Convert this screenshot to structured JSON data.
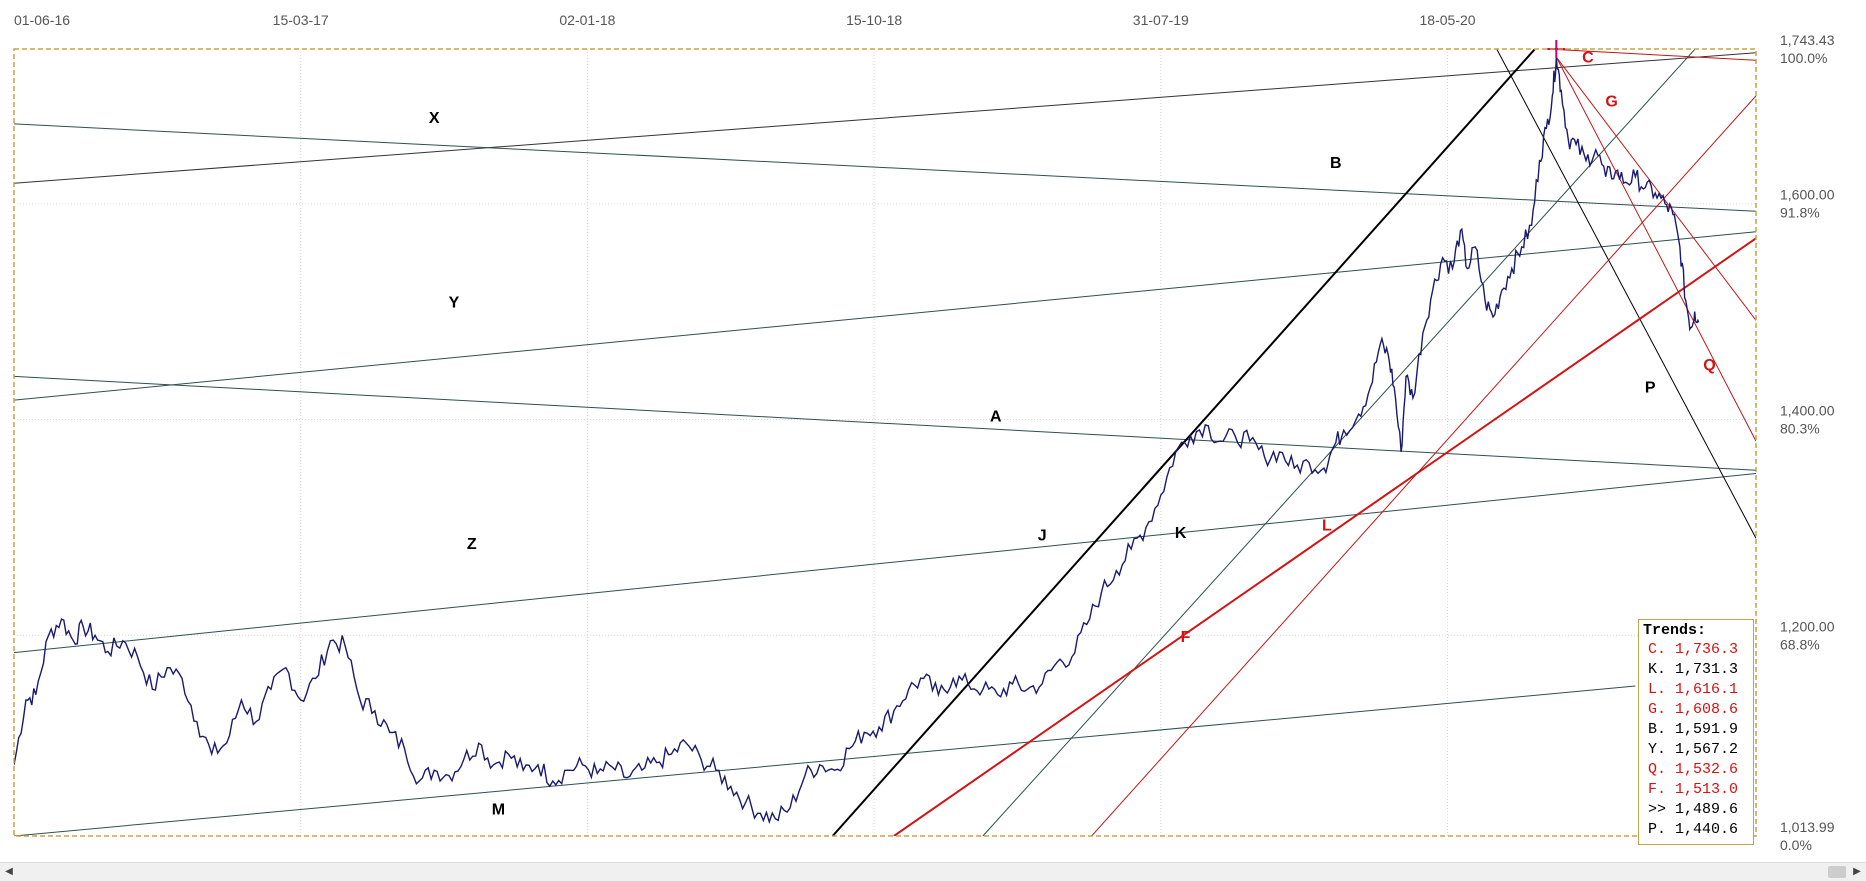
{
  "chart_data": {
    "type": "line",
    "x_ticks": [
      "01-06-16",
      "15-03-17",
      "02-01-18",
      "15-10-18",
      "31-07-19",
      "18-05-20"
    ],
    "y_labels": [
      {
        "value": 1743.43,
        "text": "1,743.43",
        "pct": "100.0%"
      },
      {
        "value": 1600,
        "text": "1,600.00",
        "pct": "91.8%"
      },
      {
        "value": 1400,
        "text": "1,400.00",
        "pct": "80.3%"
      },
      {
        "value": 1200,
        "text": "1,200.00",
        "pct": "68.8%"
      },
      {
        "value": 1013.99,
        "text": "1,013.99",
        "pct": "0.0%"
      }
    ],
    "ylim": [
      1013.99,
      1743.43
    ],
    "grid": true,
    "series": [
      {
        "color": "#1a1a6e",
        "points": [
          [
            0,
            1080
          ],
          [
            12,
            1140
          ],
          [
            22,
            1145
          ],
          [
            35,
            1200
          ],
          [
            48,
            1215
          ],
          [
            60,
            1195
          ],
          [
            70,
            1208
          ],
          [
            82,
            1200
          ],
          [
            95,
            1185
          ],
          [
            110,
            1195
          ],
          [
            125,
            1180
          ],
          [
            140,
            1150
          ],
          [
            155,
            1170
          ],
          [
            170,
            1160
          ],
          [
            185,
            1120
          ],
          [
            200,
            1090
          ],
          [
            215,
            1100
          ],
          [
            230,
            1140
          ],
          [
            245,
            1120
          ],
          [
            260,
            1150
          ],
          [
            275,
            1170
          ],
          [
            290,
            1140
          ],
          [
            305,
            1160
          ],
          [
            320,
            1195
          ],
          [
            335,
            1190
          ],
          [
            350,
            1140
          ],
          [
            365,
            1130
          ],
          [
            380,
            1110
          ],
          [
            395,
            1095
          ],
          [
            410,
            1065
          ],
          [
            425,
            1075
          ],
          [
            440,
            1070
          ],
          [
            455,
            1085
          ],
          [
            470,
            1100
          ],
          [
            485,
            1080
          ],
          [
            500,
            1090
          ],
          [
            515,
            1075
          ],
          [
            530,
            1080
          ],
          [
            545,
            1065
          ],
          [
            560,
            1075
          ],
          [
            575,
            1080
          ],
          [
            590,
            1072
          ],
          [
            605,
            1078
          ],
          [
            620,
            1068
          ],
          [
            635,
            1075
          ],
          [
            650,
            1082
          ],
          [
            665,
            1090
          ],
          [
            680,
            1100
          ],
          [
            695,
            1085
          ],
          [
            710,
            1075
          ],
          [
            725,
            1060
          ],
          [
            740,
            1045
          ],
          [
            755,
            1035
          ],
          [
            770,
            1030
          ],
          [
            785,
            1040
          ],
          [
            800,
            1070
          ],
          [
            815,
            1080
          ],
          [
            830,
            1075
          ],
          [
            845,
            1095
          ],
          [
            860,
            1110
          ],
          [
            875,
            1115
          ],
          [
            890,
            1130
          ],
          [
            905,
            1150
          ],
          [
            920,
            1160
          ],
          [
            935,
            1145
          ],
          [
            950,
            1160
          ],
          [
            965,
            1155
          ],
          [
            980,
            1150
          ],
          [
            995,
            1145
          ],
          [
            1010,
            1155
          ],
          [
            1025,
            1150
          ],
          [
            1040,
            1155
          ],
          [
            1055,
            1175
          ],
          [
            1070,
            1180
          ],
          [
            1085,
            1210
          ],
          [
            1100,
            1240
          ],
          [
            1115,
            1260
          ],
          [
            1130,
            1280
          ],
          [
            1145,
            1300
          ],
          [
            1160,
            1330
          ],
          [
            1175,
            1370
          ],
          [
            1190,
            1385
          ],
          [
            1205,
            1395
          ],
          [
            1220,
            1380
          ],
          [
            1235,
            1385
          ],
          [
            1250,
            1380
          ],
          [
            1265,
            1365
          ],
          [
            1280,
            1370
          ],
          [
            1295,
            1355
          ],
          [
            1310,
            1360
          ],
          [
            1325,
            1355
          ],
          [
            1335,
            1375
          ],
          [
            1345,
            1390
          ],
          [
            1360,
            1405
          ],
          [
            1372,
            1430
          ],
          [
            1382,
            1470
          ],
          [
            1390,
            1460
          ],
          [
            1396,
            1430
          ],
          [
            1403,
            1370
          ],
          [
            1408,
            1440
          ],
          [
            1415,
            1420
          ],
          [
            1425,
            1480
          ],
          [
            1435,
            1520
          ],
          [
            1445,
            1550
          ],
          [
            1455,
            1540
          ],
          [
            1463,
            1575
          ],
          [
            1470,
            1540
          ],
          [
            1478,
            1560
          ],
          [
            1488,
            1510
          ],
          [
            1496,
            1495
          ],
          [
            1505,
            1520
          ],
          [
            1515,
            1540
          ],
          [
            1525,
            1560
          ],
          [
            1535,
            1580
          ],
          [
            1543,
            1640
          ],
          [
            1550,
            1670
          ],
          [
            1556,
            1700
          ],
          [
            1560,
            1736
          ],
          [
            1565,
            1705
          ],
          [
            1572,
            1660
          ],
          [
            1580,
            1655
          ],
          [
            1590,
            1640
          ],
          [
            1600,
            1650
          ],
          [
            1610,
            1625
          ],
          [
            1620,
            1630
          ],
          [
            1630,
            1620
          ],
          [
            1640,
            1625
          ],
          [
            1650,
            1615
          ],
          [
            1660,
            1610
          ],
          [
            1670,
            1600
          ],
          [
            1678,
            1590
          ],
          [
            1685,
            1560
          ],
          [
            1691,
            1510
          ],
          [
            1696,
            1485
          ],
          [
            1700,
            1500
          ],
          [
            1704,
            1490
          ]
        ]
      }
    ],
    "trend_lines": [
      {
        "label": "X",
        "color": "#333333",
        "width": 1,
        "from": [
          0,
          1619
        ],
        "to": [
          1762,
          1740
        ]
      },
      {
        "label": "B",
        "color": "#2f4f4f",
        "width": 1,
        "from": [
          0,
          1674
        ],
        "to": [
          1762,
          1593
        ]
      },
      {
        "label": "Y",
        "color": "#2f4f4f",
        "width": 1,
        "from": [
          0,
          1418
        ],
        "to": [
          1762,
          1574
        ]
      },
      {
        "label": "A",
        "color": "#2f4f4f",
        "width": 1,
        "from": [
          0,
          1440
        ],
        "to": [
          1762,
          1353
        ]
      },
      {
        "label": "Z",
        "color": "#2f4f4f",
        "width": 1,
        "from": [
          0,
          1184
        ],
        "to": [
          1762,
          1350
        ]
      },
      {
        "label": "M",
        "color": "#2f4f4f",
        "width": 1,
        "from": [
          0,
          1014
        ],
        "to": [
          1640,
          1153
        ]
      },
      {
        "label": "J",
        "color": "#000000",
        "width": 2,
        "from": [
          828,
          1014
        ],
        "to": [
          1538,
          1743
        ]
      },
      {
        "label": "K",
        "color": "#2f4f4f",
        "width": 1,
        "from": [
          980,
          1014
        ],
        "to": [
          1700,
          1743
        ]
      },
      {
        "label": "P",
        "color": "#000000",
        "width": 1,
        "from": [
          1500,
          1743
        ],
        "to": [
          1762,
          1290
        ]
      },
      {
        "label": "F",
        "color": "#d21414",
        "width": 2,
        "from": [
          890,
          1014
        ],
        "to": [
          1762,
          1568
        ]
      },
      {
        "label": "L",
        "color": "#c01818",
        "width": 1,
        "from": [
          1090,
          1014
        ],
        "to": [
          1762,
          1700
        ]
      },
      {
        "label": "G",
        "color": "#c01818",
        "width": 1,
        "from": [
          1560,
          1736
        ],
        "to": [
          1762,
          1492
        ]
      },
      {
        "label": "Q",
        "color": "#c01818",
        "width": 1,
        "from": [
          1560,
          1736
        ],
        "to": [
          1762,
          1380
        ]
      },
      {
        "label": "C",
        "color": "#c01818",
        "width": 1,
        "from": [
          1560,
          1743
        ],
        "to": [
          1762,
          1733
        ]
      }
    ],
    "point_labels": [
      {
        "text": "X",
        "color": "#000000",
        "x": 425,
        "y": 1675
      },
      {
        "text": "B",
        "color": "#000000",
        "x": 1337,
        "y": 1633
      },
      {
        "text": "Y",
        "color": "#000000",
        "x": 445,
        "y": 1504
      },
      {
        "text": "A",
        "color": "#000000",
        "x": 993,
        "y": 1398
      },
      {
        "text": "Z",
        "color": "#000000",
        "x": 463,
        "y": 1280
      },
      {
        "text": "M",
        "color": "#000000",
        "x": 490,
        "y": 1034
      },
      {
        "text": "J",
        "color": "#000000",
        "x": 1040,
        "y": 1288
      },
      {
        "text": "K",
        "color": "#000000",
        "x": 1180,
        "y": 1290
      },
      {
        "text": "P",
        "color": "#000000",
        "x": 1655,
        "y": 1425
      },
      {
        "text": "F",
        "color": "#d21414",
        "x": 1185,
        "y": 1194
      },
      {
        "text": "L",
        "color": "#d21414",
        "x": 1328,
        "y": 1297
      },
      {
        "text": "G",
        "color": "#d21414",
        "x": 1616,
        "y": 1690
      },
      {
        "text": "Q",
        "color": "#d21414",
        "x": 1715,
        "y": 1446
      },
      {
        "text": "C",
        "color": "#d21414",
        "x": 1592,
        "y": 1731
      }
    ],
    "peak_marker": {
      "x": 1560,
      "y": 1743.43,
      "color": "#d6006e"
    }
  },
  "trends_box": {
    "title": "Trends:",
    "rows": [
      {
        "text": "C. 1,736.3",
        "color": "#d21414"
      },
      {
        "text": "K. 1,731.3",
        "color": "#000000"
      },
      {
        "text": "L. 1,616.1",
        "color": "#d21414"
      },
      {
        "text": "G. 1,608.6",
        "color": "#d21414"
      },
      {
        "text": "B. 1,591.9",
        "color": "#000000"
      },
      {
        "text": "Y. 1,567.2",
        "color": "#000000"
      },
      {
        "text": "Q. 1,532.6",
        "color": "#d21414"
      },
      {
        "text": "F. 1,513.0",
        "color": "#d21414"
      },
      {
        "text": ">> 1,489.6",
        "color": "#000000"
      },
      {
        "text": "P. 1,440.6",
        "color": "#000000"
      }
    ]
  },
  "colors": {
    "price_line": "#1a1a6e",
    "frame": "#c8a24a",
    "grid": "#d9d9d9",
    "red_trend": "#d21414"
  },
  "icons": {
    "scroll_left": "triangle-left",
    "scroll_right": "triangle-right"
  }
}
